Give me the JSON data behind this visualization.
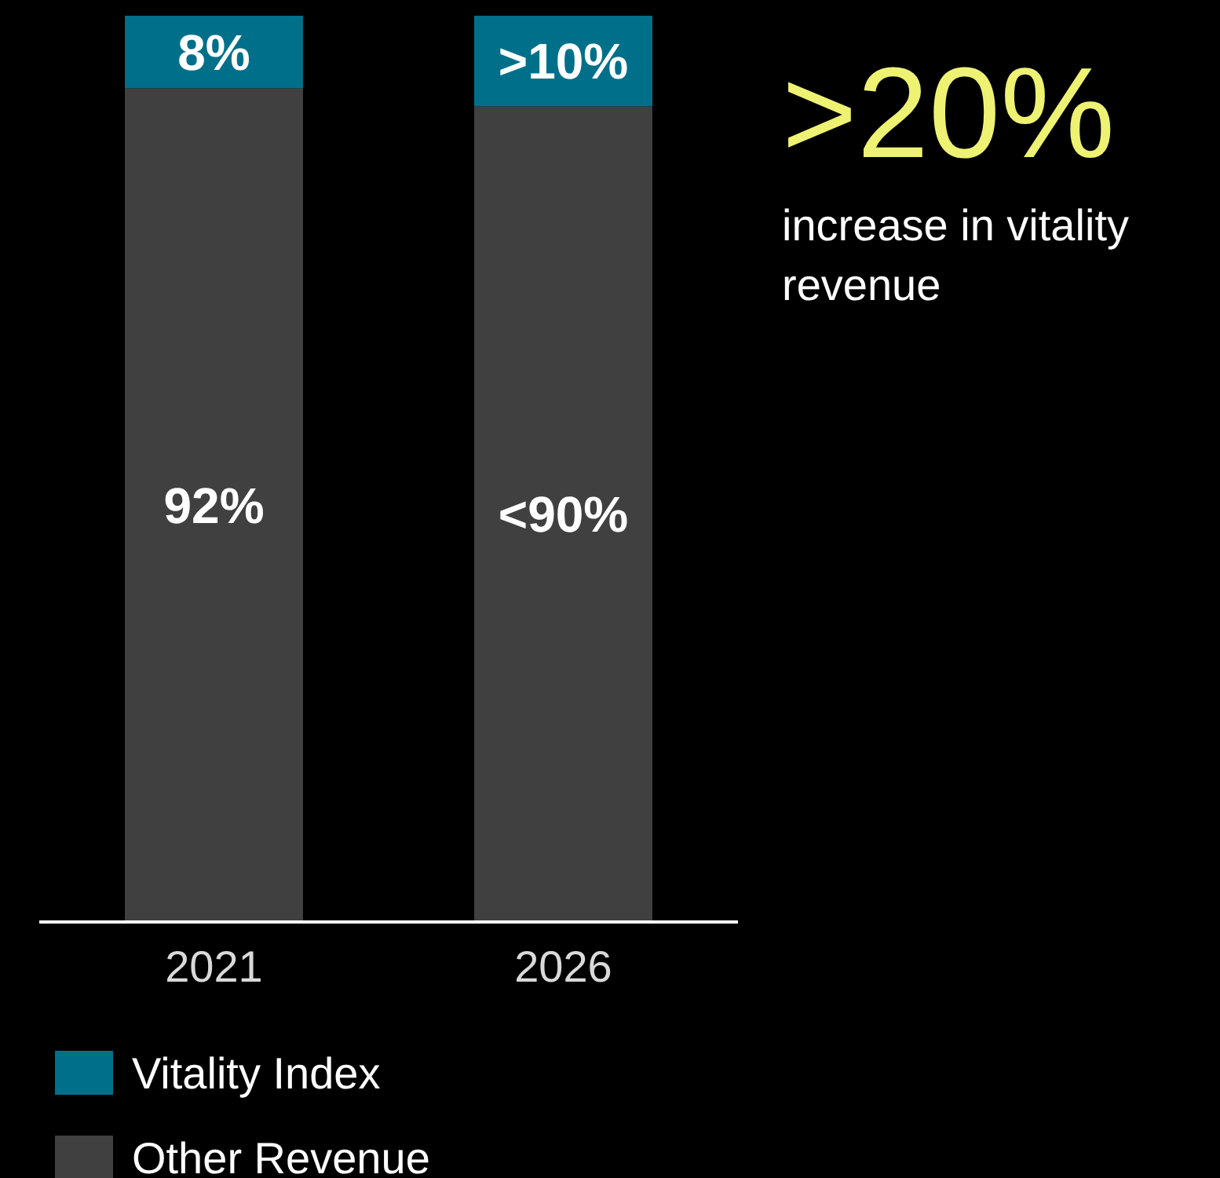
{
  "chart_data": {
    "type": "bar",
    "stacked": true,
    "categories": [
      "2021",
      "2026"
    ],
    "series": [
      {
        "name": "Other Revenue",
        "color": "#404040",
        "values": [
          92,
          90
        ],
        "value_labels": [
          "92%",
          "<90%"
        ]
      },
      {
        "name": "Vitality Index",
        "color": "#00708a",
        "values": [
          8,
          10
        ],
        "value_labels": [
          "8%",
          ">10%"
        ]
      }
    ],
    "legend": "bottom left",
    "annotations": [
      ">20%",
      "increase in vitality revenue"
    ]
  }
}
